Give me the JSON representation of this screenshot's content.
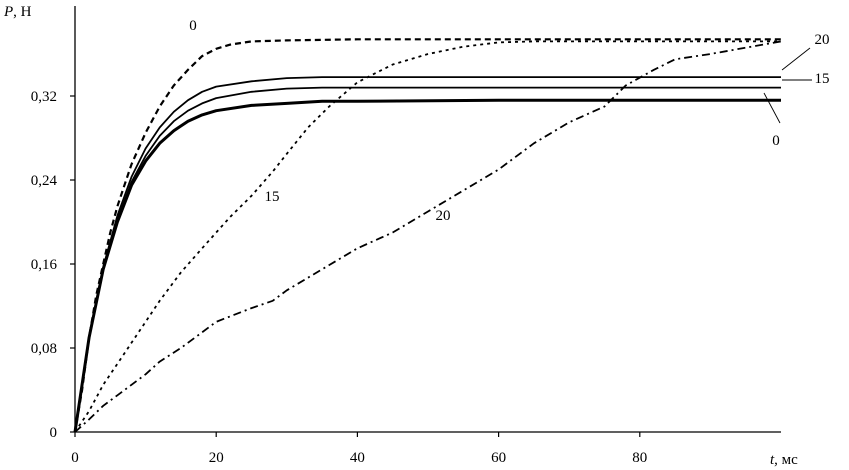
{
  "chart_data": {
    "type": "line",
    "title": "",
    "xlabel": {
      "var": "t",
      "unit": ", мс"
    },
    "ylabel": {
      "var": "P",
      "unit": ", Н"
    },
    "xlim": [
      0,
      100
    ],
    "ylim": [
      0,
      0.4
    ],
    "grid": false,
    "legend": "none",
    "x_ticks": [
      {
        "value": 0,
        "label": "0"
      },
      {
        "value": 20,
        "label": "20"
      },
      {
        "value": 40,
        "label": "40"
      },
      {
        "value": 60,
        "label": "60"
      },
      {
        "value": 80,
        "label": "80"
      }
    ],
    "y_ticks": [
      {
        "value": 0,
        "label": "0"
      },
      {
        "value": 0.08,
        "label": "0,08"
      },
      {
        "value": 0.16,
        "label": "0,16"
      },
      {
        "value": 0.24,
        "label": "0,24"
      },
      {
        "value": 0.32,
        "label": "0,32"
      }
    ],
    "series": [
      {
        "label": "0",
        "style": "solid",
        "stroke_width": 3,
        "points": [
          [
            0,
            0
          ],
          [
            2,
            0.09
          ],
          [
            4,
            0.155
          ],
          [
            6,
            0.2
          ],
          [
            8,
            0.235
          ],
          [
            10,
            0.258
          ],
          [
            12,
            0.275
          ],
          [
            14,
            0.287
          ],
          [
            16,
            0.296
          ],
          [
            18,
            0.302
          ],
          [
            20,
            0.306
          ],
          [
            25,
            0.311
          ],
          [
            30,
            0.313
          ],
          [
            35,
            0.315
          ],
          [
            40,
            0.315
          ],
          [
            60,
            0.316
          ],
          [
            100,
            0.316
          ]
        ]
      },
      {
        "label": "15",
        "style": "solid",
        "stroke_width": 1.8,
        "points": [
          [
            0,
            0
          ],
          [
            2,
            0.09
          ],
          [
            4,
            0.155
          ],
          [
            6,
            0.202
          ],
          [
            8,
            0.238
          ],
          [
            10,
            0.263
          ],
          [
            12,
            0.282
          ],
          [
            14,
            0.296
          ],
          [
            16,
            0.306
          ],
          [
            18,
            0.313
          ],
          [
            20,
            0.318
          ],
          [
            25,
            0.324
          ],
          [
            30,
            0.327
          ],
          [
            35,
            0.328
          ],
          [
            40,
            0.328
          ],
          [
            60,
            0.328
          ],
          [
            100,
            0.328
          ]
        ]
      },
      {
        "label": "20",
        "style": "solid",
        "stroke_width": 1.8,
        "points": [
          [
            0,
            0
          ],
          [
            2,
            0.09
          ],
          [
            4,
            0.157
          ],
          [
            6,
            0.206
          ],
          [
            8,
            0.243
          ],
          [
            10,
            0.27
          ],
          [
            12,
            0.29
          ],
          [
            14,
            0.305
          ],
          [
            16,
            0.316
          ],
          [
            18,
            0.324
          ],
          [
            20,
            0.329
          ],
          [
            25,
            0.334
          ],
          [
            30,
            0.337
          ],
          [
            35,
            0.338
          ],
          [
            40,
            0.338
          ],
          [
            60,
            0.338
          ],
          [
            100,
            0.338
          ]
        ]
      },
      {
        "label": "0",
        "style": "dashed-short",
        "stroke_width": 2.2,
        "points": [
          [
            0,
            0
          ],
          [
            1,
            0.04
          ],
          [
            2,
            0.09
          ],
          [
            3,
            0.13
          ],
          [
            4,
            0.16
          ],
          [
            5,
            0.19
          ],
          [
            6,
            0.215
          ],
          [
            7,
            0.235
          ],
          [
            8,
            0.255
          ],
          [
            10,
            0.285
          ],
          [
            12,
            0.31
          ],
          [
            14,
            0.33
          ],
          [
            16,
            0.345
          ],
          [
            18,
            0.358
          ],
          [
            20,
            0.365
          ],
          [
            22,
            0.369
          ],
          [
            25,
            0.372
          ],
          [
            30,
            0.373
          ],
          [
            40,
            0.374
          ],
          [
            60,
            0.374
          ],
          [
            100,
            0.374
          ]
        ]
      },
      {
        "label": "15",
        "style": "dashed-fine",
        "stroke_width": 1.8,
        "points": [
          [
            0,
            0
          ],
          [
            2,
            0.02
          ],
          [
            4,
            0.045
          ],
          [
            6,
            0.065
          ],
          [
            8,
            0.085
          ],
          [
            10,
            0.105
          ],
          [
            12,
            0.125
          ],
          [
            15,
            0.152
          ],
          [
            18,
            0.175
          ],
          [
            20,
            0.19
          ],
          [
            22,
            0.205
          ],
          [
            25,
            0.225
          ],
          [
            28,
            0.248
          ],
          [
            30,
            0.265
          ],
          [
            33,
            0.29
          ],
          [
            36,
            0.31
          ],
          [
            40,
            0.333
          ],
          [
            45,
            0.35
          ],
          [
            50,
            0.36
          ],
          [
            55,
            0.367
          ],
          [
            60,
            0.371
          ],
          [
            65,
            0.372
          ],
          [
            100,
            0.372
          ]
        ]
      },
      {
        "label": "20",
        "style": "dashdot",
        "stroke_width": 1.8,
        "points": [
          [
            0,
            0
          ],
          [
            2,
            0.012
          ],
          [
            4,
            0.025
          ],
          [
            6,
            0.035
          ],
          [
            8,
            0.045
          ],
          [
            10,
            0.055
          ],
          [
            12,
            0.067
          ],
          [
            15,
            0.08
          ],
          [
            18,
            0.095
          ],
          [
            20,
            0.105
          ],
          [
            25,
            0.118
          ],
          [
            28,
            0.125
          ],
          [
            30,
            0.135
          ],
          [
            35,
            0.155
          ],
          [
            40,
            0.175
          ],
          [
            45,
            0.19
          ],
          [
            50,
            0.21
          ],
          [
            55,
            0.23
          ],
          [
            60,
            0.25
          ],
          [
            65,
            0.275
          ],
          [
            70,
            0.295
          ],
          [
            75,
            0.31
          ],
          [
            78,
            0.33
          ],
          [
            82,
            0.345
          ],
          [
            85,
            0.355
          ],
          [
            90,
            0.36
          ],
          [
            95,
            0.366
          ],
          [
            100,
            0.372
          ]
        ]
      }
    ]
  }
}
